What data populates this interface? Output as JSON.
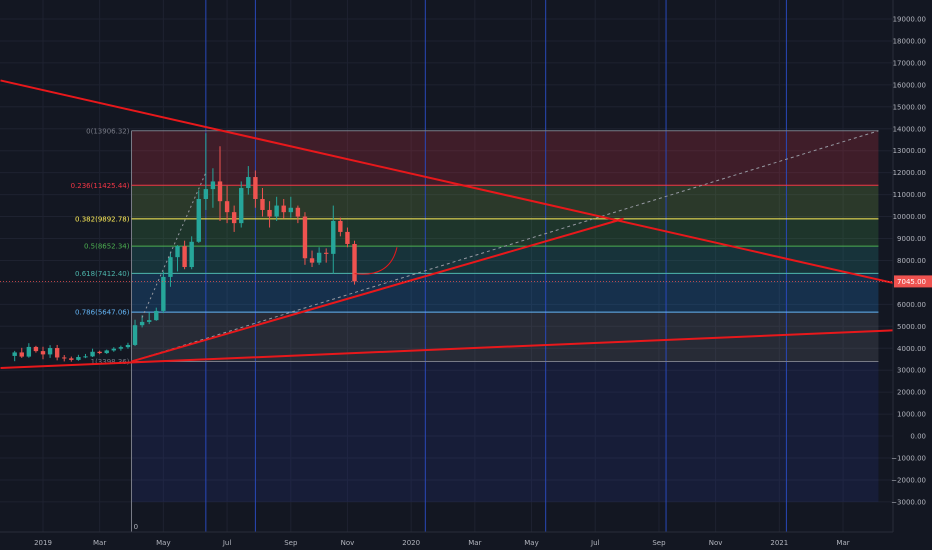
{
  "colors": {
    "background": "#131722",
    "grid": "#1e2230",
    "axis_text": "#b2b5be",
    "bull": "#26a69a",
    "bear": "#ef5350",
    "trendline": "#e8181b",
    "vline": "#2948b8",
    "price_badge": "#ef5350"
  },
  "chart_data": {
    "type": "candlestick",
    "y_axis": {
      "min": -3000,
      "max": 19000,
      "ticks": [
        "19000.00",
        "18000.00",
        "17000.00",
        "16000.00",
        "15000.00",
        "14000.00",
        "13000.00",
        "12000.00",
        "11000.00",
        "10000.00",
        "9000.00",
        "8000.00",
        "7000.00",
        "6000.00",
        "5000.00",
        "4000.00",
        "3000.00",
        "2000.00",
        "1000.00",
        "0.00",
        "−1000.00",
        "−2000.00",
        "−3000.00"
      ],
      "tick_values": [
        19000,
        18000,
        17000,
        16000,
        15000,
        14000,
        13000,
        12000,
        11000,
        10000,
        9000,
        8000,
        7000,
        6000,
        5000,
        4000,
        3000,
        2000,
        1000,
        0,
        -1000,
        -2000,
        -3000
      ]
    },
    "x_axis": {
      "tick_labels": [
        "2019",
        "Mar",
        "May",
        "Jul",
        "Sep",
        "Nov",
        "2020",
        "Mar",
        "May",
        "Jul",
        "Sep",
        "Nov",
        "2021",
        "Mar"
      ],
      "tick_weeks": [
        0,
        8,
        17,
        26,
        35,
        43,
        52,
        61,
        69,
        78,
        87,
        95,
        104,
        113
      ]
    },
    "current_price": {
      "value": 7045,
      "label": "7045.00"
    },
    "fibonacci": [
      {
        "ratio": "0",
        "price": 13906.32,
        "label": "0(13906.32)",
        "color": "#787b86"
      },
      {
        "ratio": "0.236",
        "price": 11425.44,
        "label": "0.236(11425.44)",
        "color": "#f23645"
      },
      {
        "ratio": "0.382",
        "price": 9892.78,
        "label": "0.382(9892.78)",
        "color": "#ffee58"
      },
      {
        "ratio": "0.5",
        "price": 8652.34,
        "label": "0.5(8652.34)",
        "color": "#4caf50"
      },
      {
        "ratio": "0.618",
        "price": 7412.4,
        "label": "0.618(7412.40)",
        "color": "#4db6ac"
      },
      {
        "ratio": "0.786",
        "price": 5647.06,
        "label": "0.786(5647.06)",
        "color": "#64b5f6"
      },
      {
        "ratio": "1",
        "price": 3398.36,
        "label": "1(3398.36)",
        "color": "#787b86"
      }
    ],
    "fib_zones": [
      {
        "from": 13906.32,
        "to": 11425.44,
        "color": "#f23645"
      },
      {
        "from": 11425.44,
        "to": 9892.78,
        "color": "#8bc34a"
      },
      {
        "from": 9892.78,
        "to": 8652.34,
        "color": "#4caf50"
      },
      {
        "from": 8652.34,
        "to": 7412.4,
        "color": "#26a69a"
      },
      {
        "from": 7412.4,
        "to": 5647.06,
        "color": "#2196f3"
      },
      {
        "from": 5647.06,
        "to": 3398.36,
        "color": "#787b86"
      },
      {
        "from": 3398.36,
        "to": -3000,
        "color": "#283593"
      }
    ],
    "fib_range_weeks": [
      12.5,
      118
    ],
    "trendlines": [
      {
        "w1": -6,
        "p1": 16200,
        "w2": 130,
        "p2": 6250
      },
      {
        "w1": -6,
        "p1": 3100,
        "w2": 130,
        "p2": 4950
      },
      {
        "w1": 12.5,
        "p1": 3398,
        "w2": 82,
        "p2": 9900
      }
    ],
    "dotted_line": {
      "w1": 12.5,
      "p1": 3398,
      "w2": 118,
      "p2": 13906
    },
    "dashed_line": {
      "w1": 14,
      "p1": 5400,
      "w2": 23,
      "p2": 12000
    },
    "vertical_lines_weeks": [
      23,
      30,
      54,
      71,
      88,
      105,
      123
    ],
    "bottom_markers": [
      {
        "week": 12.8,
        "label": "0"
      },
      {
        "week": 123.3,
        "label": "0"
      }
    ],
    "candles": [
      {
        "w": -4,
        "o": 3650,
        "h": 3880,
        "l": 3410,
        "c": 3810
      },
      {
        "w": -3,
        "o": 3810,
        "h": 4020,
        "l": 3560,
        "c": 3620
      },
      {
        "w": -2,
        "o": 3620,
        "h": 4230,
        "l": 3570,
        "c": 4060
      },
      {
        "w": -1,
        "o": 4060,
        "h": 4110,
        "l": 3800,
        "c": 3870
      },
      {
        "w": 0,
        "o": 3870,
        "h": 4070,
        "l": 3500,
        "c": 3720
      },
      {
        "w": 1,
        "o": 3720,
        "h": 4140,
        "l": 3560,
        "c": 4010
      },
      {
        "w": 2,
        "o": 4010,
        "h": 4150,
        "l": 3450,
        "c": 3580
      },
      {
        "w": 3,
        "o": 3580,
        "h": 3690,
        "l": 3400,
        "c": 3540
      },
      {
        "w": 4,
        "o": 3540,
        "h": 3620,
        "l": 3390,
        "c": 3470
      },
      {
        "w": 5,
        "o": 3470,
        "h": 3700,
        "l": 3430,
        "c": 3600
      },
      {
        "w": 6,
        "o": 3600,
        "h": 3740,
        "l": 3550,
        "c": 3630
      },
      {
        "w": 7,
        "o": 3630,
        "h": 3980,
        "l": 3600,
        "c": 3840
      },
      {
        "w": 8,
        "o": 3840,
        "h": 3890,
        "l": 3730,
        "c": 3780
      },
      {
        "w": 9,
        "o": 3780,
        "h": 3940,
        "l": 3740,
        "c": 3900
      },
      {
        "w": 10,
        "o": 3900,
        "h": 4050,
        "l": 3840,
        "c": 3980
      },
      {
        "w": 11,
        "o": 3980,
        "h": 4120,
        "l": 3890,
        "c": 4050
      },
      {
        "w": 12,
        "o": 4050,
        "h": 4250,
        "l": 3980,
        "c": 4150
      },
      {
        "w": 13,
        "o": 4150,
        "h": 5300,
        "l": 4100,
        "c": 5050
      },
      {
        "w": 14,
        "o": 5050,
        "h": 5500,
        "l": 4950,
        "c": 5200
      },
      {
        "w": 15,
        "o": 5200,
        "h": 5640,
        "l": 5100,
        "c": 5280
      },
      {
        "w": 16,
        "o": 5280,
        "h": 5850,
        "l": 5250,
        "c": 5700
      },
      {
        "w": 17,
        "o": 5700,
        "h": 7500,
        "l": 5600,
        "c": 7250
      },
      {
        "w": 18,
        "o": 7250,
        "h": 8400,
        "l": 6800,
        "c": 8150
      },
      {
        "w": 19,
        "o": 8150,
        "h": 8700,
        "l": 7500,
        "c": 8650
      },
      {
        "w": 20,
        "o": 8650,
        "h": 8900,
        "l": 7600,
        "c": 7700
      },
      {
        "w": 21,
        "o": 7700,
        "h": 9100,
        "l": 7600,
        "c": 8850
      },
      {
        "w": 22,
        "o": 8850,
        "h": 11200,
        "l": 8800,
        "c": 10800
      },
      {
        "w": 23,
        "o": 10800,
        "h": 13800,
        "l": 10300,
        "c": 11250
      },
      {
        "w": 24,
        "o": 11250,
        "h": 12200,
        "l": 10400,
        "c": 11600
      },
      {
        "w": 25,
        "o": 11600,
        "h": 13200,
        "l": 9800,
        "c": 10700
      },
      {
        "w": 26,
        "o": 10700,
        "h": 11400,
        "l": 9700,
        "c": 10200
      },
      {
        "w": 27,
        "o": 10200,
        "h": 10500,
        "l": 9300,
        "c": 9700
      },
      {
        "w": 28,
        "o": 9700,
        "h": 11600,
        "l": 9500,
        "c": 11300
      },
      {
        "w": 29,
        "o": 11300,
        "h": 12300,
        "l": 11000,
        "c": 11800
      },
      {
        "w": 30,
        "o": 11800,
        "h": 12100,
        "l": 10400,
        "c": 10800
      },
      {
        "w": 31,
        "o": 10800,
        "h": 11300,
        "l": 10000,
        "c": 10300
      },
      {
        "w": 32,
        "o": 10300,
        "h": 10700,
        "l": 9500,
        "c": 10000
      },
      {
        "w": 33,
        "o": 10000,
        "h": 10900,
        "l": 9800,
        "c": 10500
      },
      {
        "w": 34,
        "o": 10500,
        "h": 10800,
        "l": 9900,
        "c": 10200
      },
      {
        "w": 35,
        "o": 10200,
        "h": 10900,
        "l": 9950,
        "c": 10400
      },
      {
        "w": 36,
        "o": 10400,
        "h": 10500,
        "l": 9700,
        "c": 10000
      },
      {
        "w": 37,
        "o": 10000,
        "h": 10200,
        "l": 7800,
        "c": 8100
      },
      {
        "w": 38,
        "o": 8100,
        "h": 8450,
        "l": 7700,
        "c": 7900
      },
      {
        "w": 39,
        "o": 7900,
        "h": 8600,
        "l": 7800,
        "c": 8350
      },
      {
        "w": 40,
        "o": 8350,
        "h": 8550,
        "l": 7900,
        "c": 8300
      },
      {
        "w": 41,
        "o": 8300,
        "h": 10500,
        "l": 7400,
        "c": 9800
      },
      {
        "w": 42,
        "o": 9800,
        "h": 9950,
        "l": 9100,
        "c": 9300
      },
      {
        "w": 43,
        "o": 9300,
        "h": 9500,
        "l": 8600,
        "c": 8750
      },
      {
        "w": 44,
        "o": 8750,
        "h": 8900,
        "l": 6900,
        "c": 7045
      }
    ],
    "curve": {
      "w1": 44,
      "p1": 7400,
      "w2": 50,
      "p2": 8600
    }
  }
}
